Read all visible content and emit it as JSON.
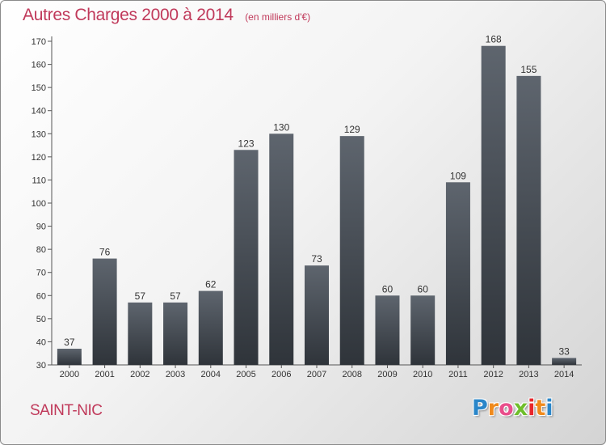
{
  "chart_data": {
    "type": "bar",
    "title": "Autres Charges 2000 à 2014",
    "unit": "(en milliers d'€)",
    "categories": [
      "2000",
      "2001",
      "2002",
      "2003",
      "2004",
      "2005",
      "2006",
      "2007",
      "2008",
      "2009",
      "2010",
      "2011",
      "2012",
      "2013",
      "2014"
    ],
    "values": [
      37,
      76,
      57,
      57,
      62,
      123,
      130,
      73,
      129,
      60,
      60,
      109,
      168,
      155,
      33
    ],
    "ylim": [
      30,
      170
    ],
    "yticks": [
      30,
      40,
      50,
      60,
      70,
      80,
      90,
      100,
      110,
      120,
      130,
      140,
      150,
      160,
      170
    ],
    "grid": false,
    "bar_color": "#4a5058"
  },
  "commune": "SAINT-NIC",
  "logo": {
    "letters": [
      "P",
      "r",
      "o",
      "x",
      "i",
      "t",
      "i"
    ],
    "colors": [
      "#2a86c9",
      "#f08a1c",
      "#e94e8b",
      "#6fbe2b",
      "#e8262b",
      "#f08a1c",
      "#2a86c9"
    ]
  }
}
